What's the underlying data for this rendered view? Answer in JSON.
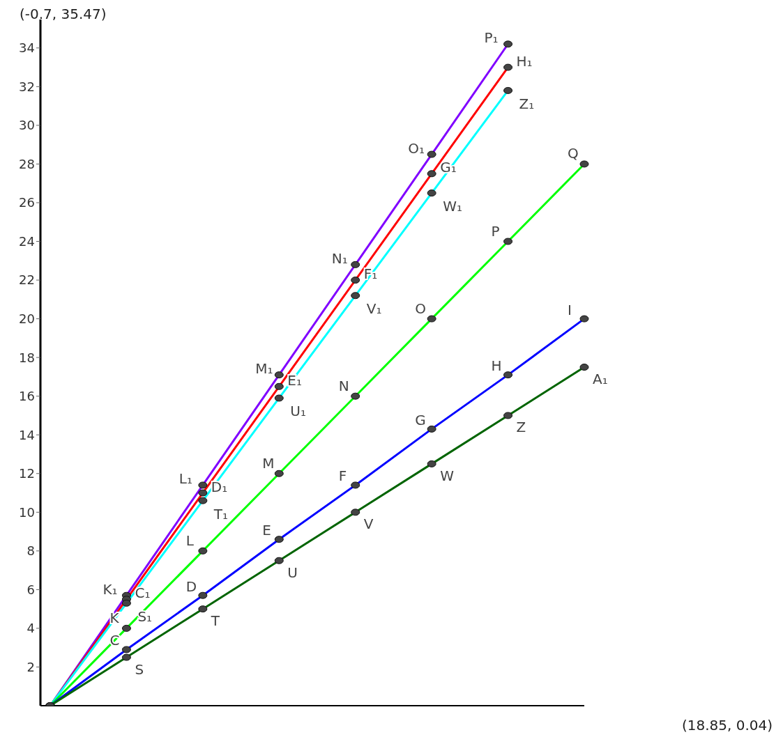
{
  "chart_data": {
    "type": "line",
    "categories": [
      null,
      null,
      null,
      null,
      null,
      null,
      null,
      null
    ],
    "ylim": [
      0,
      35.47
    ],
    "yticks": [
      2,
      4,
      6,
      8,
      10,
      12,
      14,
      16,
      18,
      20,
      22,
      24,
      26,
      28,
      30,
      32,
      34
    ],
    "tick_labels": "y",
    "grid": false,
    "legend": false,
    "marker": "circle",
    "line_style": "solid",
    "annotations": [
      "(-0.7, 35.47)",
      "(18.85, 0.04)"
    ],
    "series": [
      {
        "color": "#8000ff",
        "values": [
          0,
          5.7,
          11.4,
          17.1,
          22.8,
          28.5,
          34.2,
          null
        ],
        "value_labels": [
          null,
          "K₁",
          "L₁",
          "M₁",
          "N₁",
          "O₁",
          "P₁",
          null
        ]
      },
      {
        "color": "#ff0000",
        "values": [
          0,
          5.5,
          11,
          16.5,
          22,
          27.5,
          33,
          null
        ],
        "value_labels": [
          null,
          "C₁",
          "D₁",
          "E₁",
          "F₁",
          "G₁",
          "H₁",
          null
        ]
      },
      {
        "color": "#00ffff",
        "values": [
          0,
          5.3,
          10.6,
          15.9,
          21.2,
          26.5,
          31.8,
          null
        ],
        "value_labels": [
          null,
          "S₁",
          "T₁",
          "U₁",
          "V₁",
          "W₁",
          "Z₁",
          null
        ]
      },
      {
        "color": "#00ff00",
        "values": [
          0,
          4,
          8,
          12,
          16,
          20,
          24,
          28
        ],
        "value_labels": [
          null,
          "K",
          "L",
          "M",
          "N",
          "O",
          "P",
          "Q"
        ]
      },
      {
        "color": "#0000ff",
        "values": [
          0,
          2.9,
          5.7,
          8.6,
          11.4,
          14.3,
          17.1,
          20
        ],
        "value_labels": [
          null,
          "C",
          "D",
          "E",
          "F",
          "G",
          "H",
          "I"
        ]
      },
      {
        "color": "#006400",
        "values": [
          0,
          2.5,
          5,
          7.5,
          10,
          12.5,
          15,
          17.5
        ],
        "value_labels": [
          null,
          "S",
          "T",
          "U",
          "V",
          "W",
          "Z",
          "A₁"
        ]
      }
    ]
  }
}
